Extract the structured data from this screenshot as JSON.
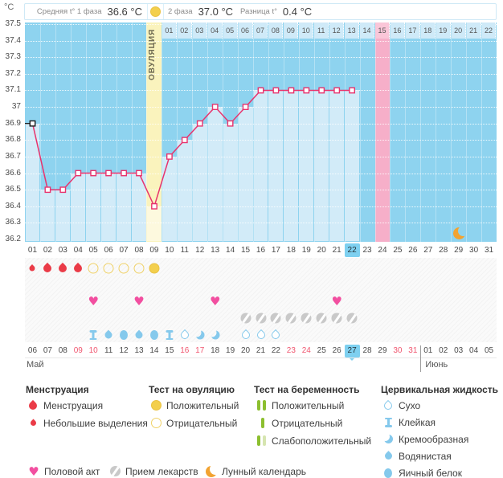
{
  "unit": "°C",
  "summary": {
    "phase1_label": "Средняя t° 1 фаза",
    "phase1_value": "36.6 °C",
    "phase2_label": "2 фаза",
    "phase2_value": "37.0 °C",
    "diff_label": "Разница t°",
    "diff_value": "0.4 °C"
  },
  "chart_data": {
    "type": "line",
    "ylabel": "°C",
    "ylim": [
      36.2,
      37.5
    ],
    "grid": "dotted-horizontal",
    "yticks": [
      "37.5",
      "37.4",
      "37.3",
      "37.2",
      "37.1",
      "37",
      "36.9",
      "36.8",
      "36.7",
      "36.6",
      "36.5",
      "36.4",
      "36.3",
      "36.2"
    ],
    "cycle_day_labels": [
      "01",
      "02",
      "03",
      "04",
      "05",
      "06",
      "07",
      "08",
      "09",
      "10",
      "11",
      "12",
      "13",
      "14",
      "15",
      "16",
      "17",
      "18",
      "19",
      "20",
      "21",
      "22",
      "23",
      "24",
      "25",
      "26",
      "27",
      "28",
      "29",
      "30",
      "31"
    ],
    "temperatures": [
      36.9,
      36.5,
      36.5,
      36.6,
      36.6,
      36.6,
      36.6,
      36.6,
      36.4,
      36.7,
      36.8,
      36.9,
      37.0,
      36.9,
      37.0,
      37.1,
      37.1,
      37.1,
      37.1,
      37.1,
      37.1,
      37.1,
      null,
      null,
      null,
      null,
      null,
      null,
      null,
      null,
      null
    ],
    "ovulation_day": 9,
    "ovulation_label": "ОВУЛЯЦИЯ",
    "dpo_labels": [
      "01",
      "02",
      "03",
      "04",
      "05",
      "06",
      "07",
      "08",
      "09",
      "10",
      "11",
      "12",
      "13",
      "14",
      "15",
      "16",
      "17",
      "18",
      "19",
      "20",
      "21",
      "22"
    ],
    "expected_period_dpo": "15",
    "expected_period_day": 24,
    "current_day": 22,
    "moon_day": 29
  },
  "events": {
    "menstruation": [
      {
        "day": 1,
        "size": "small"
      },
      {
        "day": 2,
        "size": "large"
      },
      {
        "day": 3,
        "size": "large"
      },
      {
        "day": 4,
        "size": "large"
      }
    ],
    "ovulation_tests": [
      {
        "day": 5,
        "result": "negative"
      },
      {
        "day": 6,
        "result": "negative"
      },
      {
        "day": 7,
        "result": "negative"
      },
      {
        "day": 8,
        "result": "negative"
      },
      {
        "day": 9,
        "result": "positive"
      }
    ],
    "intercourse_days": [
      5,
      8,
      13,
      21
    ],
    "medication_days": [
      15,
      16,
      17,
      18,
      19,
      20,
      21,
      22
    ],
    "cervical_fluid": [
      {
        "day": 5,
        "type": "sticky"
      },
      {
        "day": 6,
        "type": "watery"
      },
      {
        "day": 7,
        "type": "eggwhite"
      },
      {
        "day": 8,
        "type": "watery"
      },
      {
        "day": 9,
        "type": "eggwhite"
      },
      {
        "day": 10,
        "type": "sticky"
      },
      {
        "day": 11,
        "type": "dry"
      },
      {
        "day": 12,
        "type": "creamy"
      },
      {
        "day": 13,
        "type": "creamy"
      },
      {
        "day": 15,
        "type": "dry"
      },
      {
        "day": 16,
        "type": "dry"
      },
      {
        "day": 17,
        "type": "dry"
      }
    ]
  },
  "dates": {
    "month_left": "Май",
    "month_right": "Июнь",
    "days": [
      {
        "label": "06"
      },
      {
        "label": "07"
      },
      {
        "label": "08"
      },
      {
        "label": "09",
        "weekend": true
      },
      {
        "label": "10",
        "weekend": true
      },
      {
        "label": "11"
      },
      {
        "label": "12"
      },
      {
        "label": "13"
      },
      {
        "label": "14"
      },
      {
        "label": "15"
      },
      {
        "label": "16",
        "weekend": true
      },
      {
        "label": "17",
        "weekend": true
      },
      {
        "label": "18"
      },
      {
        "label": "19"
      },
      {
        "label": "20"
      },
      {
        "label": "21"
      },
      {
        "label": "22"
      },
      {
        "label": "23",
        "weekend": true
      },
      {
        "label": "24",
        "weekend": true
      },
      {
        "label": "25"
      },
      {
        "label": "26"
      },
      {
        "label": "27",
        "current": true
      },
      {
        "label": "28"
      },
      {
        "label": "29"
      },
      {
        "label": "30",
        "weekend": true
      },
      {
        "label": "31",
        "weekend": true
      },
      {
        "label": "01"
      },
      {
        "label": "02"
      },
      {
        "label": "03"
      },
      {
        "label": "04"
      },
      {
        "label": "05"
      }
    ]
  },
  "legend": {
    "sections": [
      {
        "header": "Менструация",
        "items": [
          {
            "icon": "drop-large-red",
            "label": "Менструация"
          },
          {
            "icon": "drop-small-red",
            "label": "Небольшие выделения"
          }
        ]
      },
      {
        "header": "Тест на овуляцию",
        "items": [
          {
            "icon": "circle-filled-yellow",
            "label": "Положительный"
          },
          {
            "icon": "circle-outline-yellow",
            "label": "Отрицательный"
          }
        ]
      },
      {
        "header": "Тест на беременность",
        "items": [
          {
            "icon": "bars-two-green",
            "label": "Положительный"
          },
          {
            "icon": "bar-one-green",
            "label": "Отрицательный"
          },
          {
            "icon": "bars-green-pale",
            "label": "Слабоположительный"
          }
        ]
      },
      {
        "header": "Цервикальная жидкость",
        "items": [
          {
            "icon": "fluid-dry",
            "label": "Сухо"
          },
          {
            "icon": "fluid-sticky",
            "label": "Клейкая"
          },
          {
            "icon": "fluid-creamy",
            "label": "Кремообразная"
          },
          {
            "icon": "fluid-watery",
            "label": "Водянистая"
          },
          {
            "icon": "fluid-eggwhite",
            "label": "Яичный белок"
          }
        ]
      }
    ],
    "footer": [
      {
        "icon": "heart",
        "label": "Половой акт"
      },
      {
        "icon": "pill",
        "label": "Прием лекарств"
      },
      {
        "icon": "moon",
        "label": "Лунный календарь"
      }
    ]
  },
  "colors": {
    "line": "#e8336d",
    "chart_bg": "#8ed3ef",
    "fill": "#d2ebf8",
    "ovulation_band": "#faf3bd",
    "ovulation_yellow": "#f3cf4d",
    "expected_period_band": "#f6afc9",
    "current_day_highlight": "#7ed0f0",
    "weekend_red": "#f0566f",
    "blood_red": "#ea3b47",
    "fluid_blue": "#85c9ec",
    "heart_pink": "#f24fa0",
    "pill_gray": "#c9c9c9",
    "moon_orange": "#f2a331",
    "test_green": "#8cbf2f",
    "test_green_pale": "#d6e5b0"
  }
}
